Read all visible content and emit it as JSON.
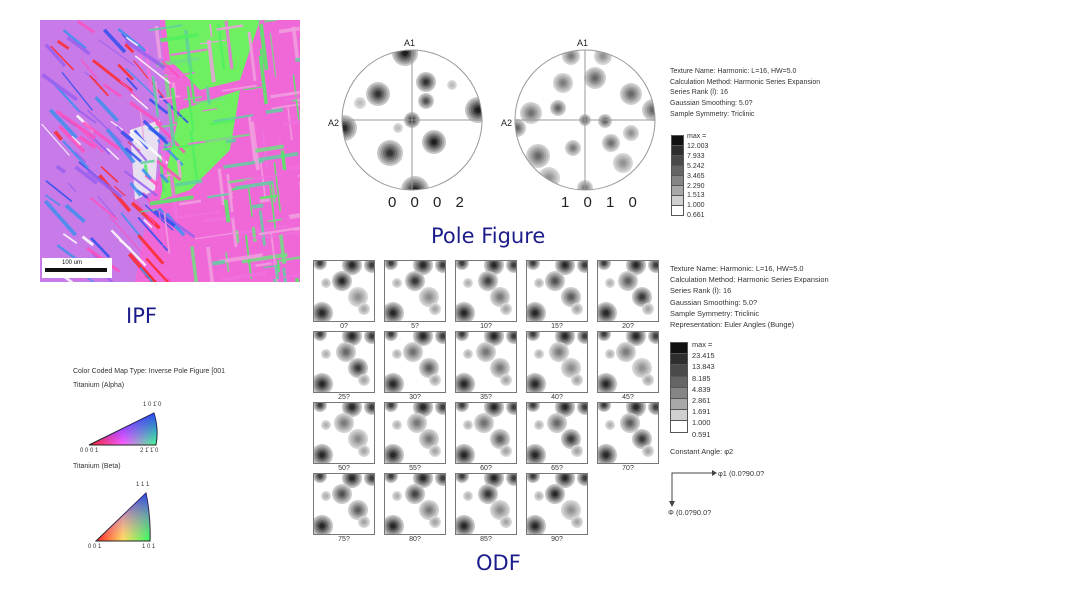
{
  "ipf": {
    "title": "IPF",
    "scale_bar": "100 um",
    "legend": {
      "map_type": "Color Coded Map Type: Inverse Pole Figure [001",
      "alpha": {
        "name": "Titanium (Alpha)",
        "top": "1 0 1̄ 0",
        "left": "0 0 0 1",
        "right": "2 1̄ 1̄ 0"
      },
      "beta": {
        "name": "Titanium (Beta)",
        "top": "1 1 1",
        "left": "0 0 1",
        "right": "1 0 1"
      }
    }
  },
  "pole_figure": {
    "title": "Pole Figure",
    "axis_top": "A1",
    "axis_left": "A2",
    "figures": [
      {
        "label": "0 0 0 2"
      },
      {
        "label": "1 0 1 0"
      }
    ],
    "info": [
      "Texture Name: Harmonic: L=16, HW=5.0",
      "Calculation Method: Harmonic Series Expansion",
      "Series Rank (l): 16",
      "Gaussian Smoothing: 5.0?",
      "Sample Symmetry: Triclinic"
    ],
    "scale": [
      "max = 12.003",
      "7.933",
      "5.242",
      "3.465",
      "2.290",
      "1.513",
      "1.000",
      "0.661"
    ]
  },
  "odf": {
    "title": "ODF",
    "sections": [
      "0?",
      "5?",
      "10?",
      "15?",
      "20?",
      "25?",
      "30?",
      "35?",
      "40?",
      "45?",
      "50?",
      "55?",
      "60?",
      "65?",
      "70?",
      "75?",
      "80?",
      "85?",
      "90?"
    ],
    "info": [
      "Texture Name: Harmonic: L=16, HW=5.0",
      "Calculation Method: Harmonic Series Expansion",
      "Series Rank (l): 16",
      "Gaussian Smoothing: 5.0?",
      "Sample Symmetry: Triclinic",
      "Representation: Euler Angles (Bunge)"
    ],
    "scale": [
      "max = 23.415",
      "13.843",
      "8.185",
      "4.839",
      "2.861",
      "1.691",
      "1.000",
      "0.591"
    ],
    "constant_angle": "Constant Angle: φ2",
    "axis_x": "φ1 (0.0?90.0?",
    "axis_y": "Φ (0.0?90.0?"
  },
  "colors": {
    "title": "#1c1c8a",
    "scale": [
      "#111111",
      "#2e2e2e",
      "#4a4a4a",
      "#666666",
      "#858585",
      "#a8a8a8",
      "#d0d0d0",
      "#ffffff"
    ]
  }
}
